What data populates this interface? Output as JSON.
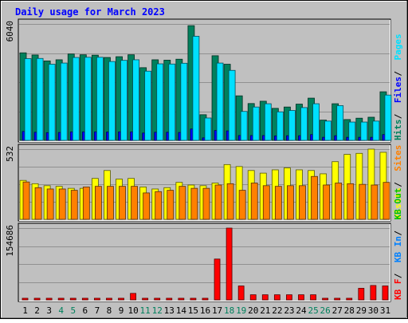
{
  "chart_data": [
    {
      "type": "bar",
      "title": "Daily usage for March 2023",
      "categories": [
        "1",
        "2",
        "3",
        "4",
        "5",
        "6",
        "7",
        "8",
        "9",
        "10",
        "11",
        "12",
        "13",
        "14",
        "15",
        "16",
        "17",
        "18",
        "19",
        "20",
        "21",
        "22",
        "23",
        "24",
        "25",
        "26",
        "27",
        "28",
        "29",
        "30",
        "31"
      ],
      "weekend_days": [
        "4",
        "5",
        "11",
        "12",
        "18",
        "19",
        "25",
        "26"
      ],
      "ylim": [
        0,
        6040
      ],
      "y_tick": "6040",
      "axis_labels": [
        {
          "text": "Hits",
          "color": "#00805c"
        },
        {
          "text": "Files",
          "color": "#0000ff"
        },
        {
          "text": "Pages",
          "color": "#00e0ff"
        }
      ],
      "series": [
        {
          "name": "Hits",
          "color": "#00805c",
          "values": [
            4540,
            4430,
            4120,
            4180,
            4480,
            4440,
            4420,
            4300,
            4340,
            4440,
            3770,
            4180,
            4160,
            4210,
            5950,
            1330,
            4390,
            3950,
            2310,
            1910,
            2030,
            1660,
            1730,
            1880,
            2190,
            1050,
            1900,
            1080,
            1150,
            1200,
            2520
          ]
        },
        {
          "name": "Files",
          "color": "#0000ff",
          "values": [
            460,
            420,
            400,
            410,
            440,
            440,
            440,
            430,
            440,
            440,
            380,
            420,
            420,
            410,
            590,
            130,
            510,
            490,
            250,
            250,
            250,
            230,
            240,
            240,
            300,
            160,
            240,
            160,
            160,
            160,
            300
          ]
        },
        {
          "name": "Pages",
          "color": "#00e0ff",
          "values": [
            4240,
            4250,
            3950,
            4010,
            4300,
            4310,
            4310,
            4090,
            4150,
            4180,
            3590,
            3970,
            3960,
            4000,
            5400,
            1160,
            4010,
            3630,
            1500,
            1730,
            1900,
            1480,
            1550,
            1700,
            1900,
            1000,
            1800,
            950,
            950,
            1000,
            2350
          ]
        }
      ],
      "series_order_note": ""
    },
    {
      "type": "bar",
      "categories": [
        "1",
        "2",
        "3",
        "4",
        "5",
        "6",
        "7",
        "8",
        "9",
        "10",
        "11",
        "12",
        "13",
        "14",
        "15",
        "16",
        "17",
        "18",
        "19",
        "20",
        "21",
        "22",
        "23",
        "24",
        "25",
        "26",
        "27",
        "28",
        "29",
        "30",
        "31"
      ],
      "ylim": [
        0,
        532
      ],
      "y_tick": "532",
      "axis_labels": [
        {
          "text": "Visits",
          "color": "#ffff00"
        },
        {
          "text": "Sites",
          "color": "#ff8000"
        }
      ],
      "series": [
        {
          "name": "Visits",
          "color": "#ffff00",
          "values": [
            295,
            270,
            255,
            250,
            235,
            235,
            310,
            370,
            305,
            310,
            245,
            230,
            240,
            280,
            260,
            255,
            275,
            415,
            400,
            370,
            350,
            375,
            390,
            375,
            370,
            345,
            437,
            492,
            500,
            532,
            508
          ]
        },
        {
          "name": "Sites",
          "color": "#ff8000",
          "values": [
            283,
            240,
            230,
            230,
            220,
            245,
            250,
            250,
            250,
            250,
            200,
            210,
            220,
            250,
            235,
            235,
            260,
            270,
            220,
            275,
            255,
            250,
            255,
            255,
            325,
            260,
            275,
            270,
            265,
            260,
            280
          ]
        }
      ]
    },
    {
      "type": "bar",
      "categories": [
        "1",
        "2",
        "3",
        "4",
        "5",
        "6",
        "7",
        "8",
        "9",
        "10",
        "11",
        "12",
        "13",
        "14",
        "15",
        "16",
        "17",
        "18",
        "19",
        "20",
        "21",
        "22",
        "23",
        "24",
        "25",
        "26",
        "27",
        "28",
        "29",
        "30",
        "31"
      ],
      "ylim": [
        0,
        154686
      ],
      "y_tick": "154686",
      "axis_labels": [
        {
          "text": "KB F",
          "color": "#ff0000"
        },
        {
          "text": "KB In",
          "color": "#0080ff"
        },
        {
          "text": "KB Out",
          "color": "#00c000"
        }
      ],
      "series": [
        {
          "name": "KB F",
          "color": "#ff0000",
          "values": [
            3500,
            3500,
            3500,
            3500,
            3500,
            3500,
            3500,
            3500,
            3500,
            14000,
            3500,
            3500,
            3500,
            3500,
            3500,
            3500,
            88000,
            154686,
            30000,
            11000,
            11000,
            11000,
            11000,
            11000,
            11000,
            3500,
            3500,
            3500,
            25000,
            31000,
            30000
          ]
        }
      ]
    }
  ]
}
